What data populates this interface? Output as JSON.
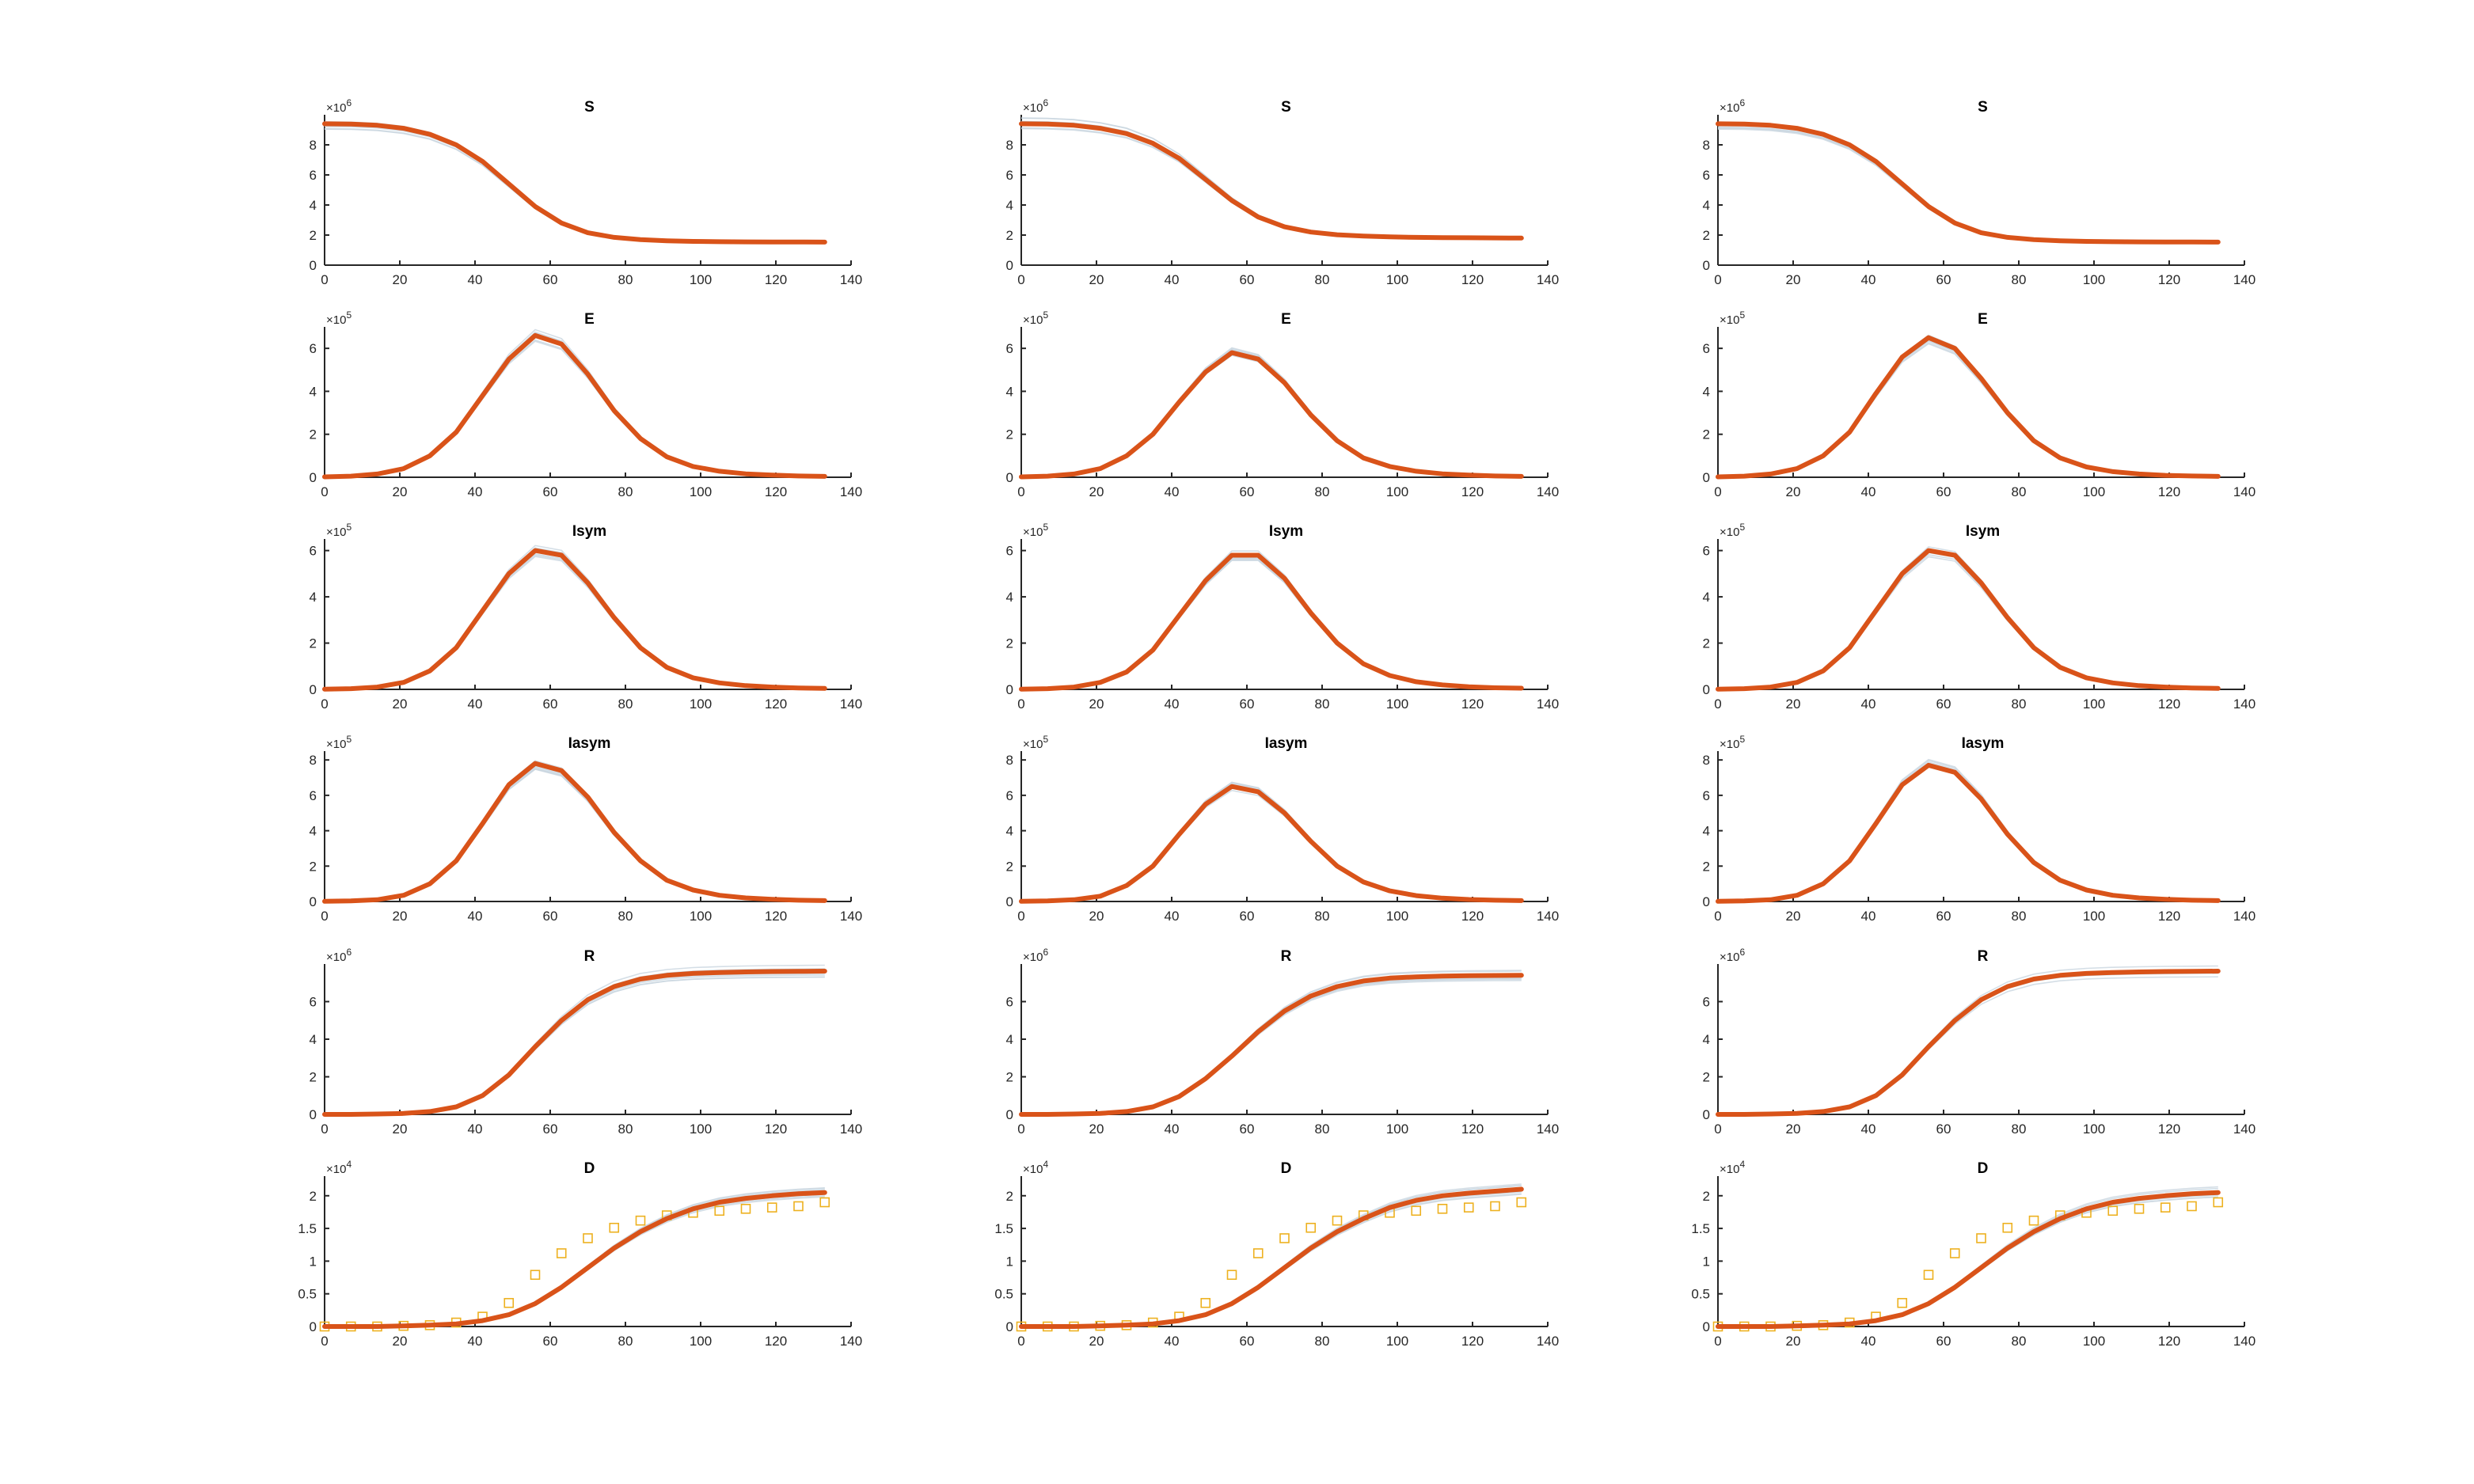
{
  "colors": {
    "fit": "#d95319",
    "ensemble": "#c9d6e0",
    "observed": "#edb120",
    "axis": "#262626"
  },
  "x_axis": {
    "ticks": [
      0,
      20,
      40,
      60,
      80,
      100,
      120,
      140
    ],
    "range": [
      0,
      140
    ]
  },
  "rows": [
    {
      "title": "S",
      "exponent": "6",
      "ylim": [
        0,
        10
      ],
      "yticks": [
        "0",
        "2",
        "4",
        "6",
        "8"
      ]
    },
    {
      "title": "E",
      "exponent": "5",
      "ylim": [
        0,
        7
      ],
      "yticks": [
        "0",
        "2",
        "4",
        "6"
      ]
    },
    {
      "title": "Isym",
      "exponent": "5",
      "ylim": [
        0,
        6.5
      ],
      "yticks": [
        "0",
        "2",
        "4",
        "6"
      ]
    },
    {
      "title": "Iasym",
      "exponent": "5",
      "ylim": [
        0,
        8.5
      ],
      "yticks": [
        "0",
        "2",
        "4",
        "6",
        "8"
      ]
    },
    {
      "title": "R",
      "exponent": "6",
      "ylim": [
        0,
        8
      ],
      "yticks": [
        "0",
        "2",
        "4",
        "6"
      ]
    },
    {
      "title": "D",
      "exponent": "4",
      "ylim": [
        0,
        2.3
      ],
      "yticks": [
        "0",
        "0.5",
        "1",
        "1.5",
        "2"
      ]
    }
  ],
  "chart_data": {
    "type": "line",
    "layout": "6 rows x 3 columns of subplots",
    "x": [
      0,
      7,
      14,
      21,
      28,
      35,
      42,
      49,
      56,
      63,
      70,
      77,
      84,
      91,
      98,
      105,
      112,
      119,
      126,
      133
    ],
    "observed_D_x": [
      0,
      7,
      14,
      21,
      28,
      35,
      42,
      49,
      56,
      63,
      70,
      77,
      84,
      91,
      98,
      105,
      112,
      119,
      126,
      133
    ],
    "observed_D_values": [
      0,
      0,
      0,
      0.01,
      0.02,
      0.06,
      0.15,
      0.36,
      0.79,
      1.12,
      1.35,
      1.51,
      1.62,
      1.7,
      1.74,
      1.77,
      1.8,
      1.82,
      1.84,
      1.9
    ],
    "columns": [
      {
        "S": [
          9.4,
          9.38,
          9.3,
          9.1,
          8.7,
          8.0,
          6.9,
          5.4,
          3.9,
          2.8,
          2.15,
          1.85,
          1.7,
          1.62,
          1.58,
          1.56,
          1.55,
          1.54,
          1.54,
          1.53
        ],
        "E": [
          0.02,
          0.05,
          0.15,
          0.4,
          1.0,
          2.1,
          3.8,
          5.5,
          6.6,
          6.2,
          4.8,
          3.1,
          1.8,
          0.95,
          0.5,
          0.28,
          0.16,
          0.1,
          0.06,
          0.04
        ],
        "Isym": [
          0.01,
          0.03,
          0.1,
          0.3,
          0.8,
          1.8,
          3.4,
          5.0,
          6.0,
          5.8,
          4.6,
          3.1,
          1.8,
          0.95,
          0.5,
          0.28,
          0.16,
          0.1,
          0.06,
          0.04
        ],
        "Iasym": [
          0.01,
          0.03,
          0.1,
          0.35,
          1.0,
          2.3,
          4.4,
          6.6,
          7.8,
          7.4,
          5.9,
          3.9,
          2.3,
          1.2,
          0.65,
          0.35,
          0.2,
          0.12,
          0.07,
          0.05
        ],
        "R": [
          0.0,
          0.0,
          0.02,
          0.05,
          0.15,
          0.4,
          1.0,
          2.1,
          3.6,
          5.0,
          6.1,
          6.8,
          7.2,
          7.4,
          7.5,
          7.55,
          7.58,
          7.6,
          7.61,
          7.62
        ],
        "D": [
          0.0,
          0.0,
          0.0,
          0.01,
          0.02,
          0.04,
          0.09,
          0.18,
          0.35,
          0.6,
          0.9,
          1.2,
          1.45,
          1.65,
          1.8,
          1.9,
          1.96,
          2.0,
          2.03,
          2.05
        ]
      },
      {
        "S": [
          9.4,
          9.38,
          9.3,
          9.1,
          8.75,
          8.1,
          7.1,
          5.7,
          4.3,
          3.2,
          2.55,
          2.2,
          2.02,
          1.93,
          1.88,
          1.85,
          1.83,
          1.82,
          1.81,
          1.8
        ],
        "E": [
          0.02,
          0.05,
          0.15,
          0.4,
          1.0,
          2.0,
          3.5,
          4.9,
          5.8,
          5.5,
          4.4,
          2.9,
          1.7,
          0.9,
          0.5,
          0.28,
          0.16,
          0.1,
          0.06,
          0.04
        ],
        "Isym": [
          0.01,
          0.03,
          0.1,
          0.3,
          0.75,
          1.7,
          3.2,
          4.7,
          5.8,
          5.8,
          4.8,
          3.3,
          2.0,
          1.1,
          0.6,
          0.33,
          0.19,
          0.11,
          0.07,
          0.05
        ],
        "Iasym": [
          0.01,
          0.03,
          0.1,
          0.3,
          0.9,
          2.0,
          3.8,
          5.5,
          6.5,
          6.2,
          5.0,
          3.4,
          2.0,
          1.1,
          0.6,
          0.33,
          0.19,
          0.11,
          0.07,
          0.05
        ],
        "R": [
          0.0,
          0.0,
          0.02,
          0.05,
          0.15,
          0.4,
          0.95,
          1.9,
          3.1,
          4.4,
          5.5,
          6.3,
          6.8,
          7.1,
          7.25,
          7.32,
          7.36,
          7.38,
          7.39,
          7.4
        ],
        "D": [
          0.0,
          0.0,
          0.0,
          0.01,
          0.02,
          0.04,
          0.09,
          0.18,
          0.35,
          0.6,
          0.9,
          1.2,
          1.45,
          1.65,
          1.82,
          1.93,
          2.0,
          2.04,
          2.07,
          2.1
        ]
      },
      {
        "S": [
          9.4,
          9.38,
          9.3,
          9.1,
          8.7,
          8.0,
          6.9,
          5.4,
          3.9,
          2.8,
          2.15,
          1.85,
          1.7,
          1.62,
          1.58,
          1.56,
          1.55,
          1.54,
          1.54,
          1.53
        ],
        "E": [
          0.02,
          0.05,
          0.15,
          0.4,
          1.0,
          2.1,
          3.9,
          5.6,
          6.5,
          6.0,
          4.6,
          3.0,
          1.7,
          0.9,
          0.48,
          0.26,
          0.15,
          0.09,
          0.06,
          0.04
        ],
        "Isym": [
          0.01,
          0.03,
          0.1,
          0.3,
          0.8,
          1.8,
          3.4,
          5.0,
          6.0,
          5.8,
          4.6,
          3.1,
          1.8,
          0.95,
          0.5,
          0.28,
          0.16,
          0.1,
          0.06,
          0.04
        ],
        "Iasym": [
          0.01,
          0.03,
          0.1,
          0.35,
          1.0,
          2.3,
          4.4,
          6.6,
          7.7,
          7.3,
          5.8,
          3.8,
          2.2,
          1.2,
          0.65,
          0.35,
          0.2,
          0.12,
          0.07,
          0.05
        ],
        "R": [
          0.0,
          0.0,
          0.02,
          0.05,
          0.15,
          0.4,
          1.0,
          2.1,
          3.6,
          5.0,
          6.1,
          6.8,
          7.2,
          7.4,
          7.5,
          7.55,
          7.58,
          7.6,
          7.61,
          7.62
        ],
        "D": [
          0.0,
          0.0,
          0.0,
          0.01,
          0.02,
          0.04,
          0.09,
          0.18,
          0.35,
          0.6,
          0.9,
          1.2,
          1.45,
          1.65,
          1.8,
          1.9,
          1.96,
          2.0,
          2.03,
          2.05
        ]
      }
    ]
  }
}
